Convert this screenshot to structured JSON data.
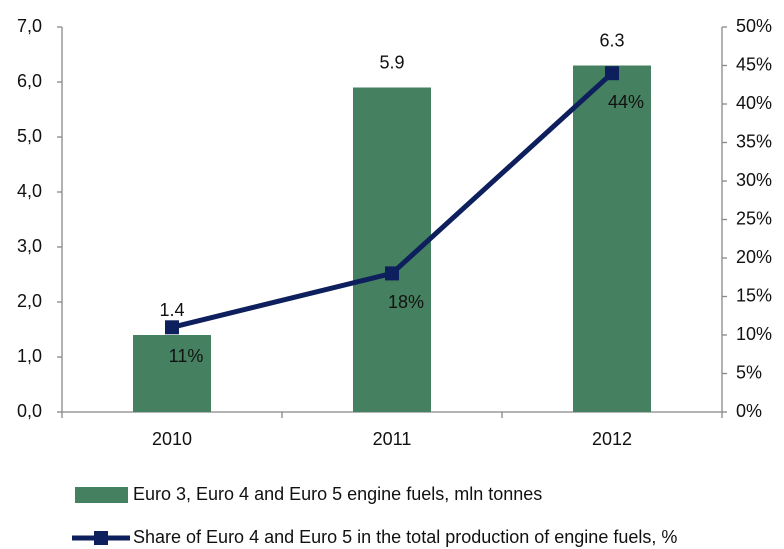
{
  "chart_data": {
    "type": "bar",
    "categories": [
      "2010",
      "2011",
      "2012"
    ],
    "series": [
      {
        "name": "Euro 3, Euro 4 and Euro 5 engine fuels, mln tonnes",
        "type": "bar",
        "color": "#458060",
        "values": [
          1.4,
          5.9,
          6.3
        ]
      },
      {
        "name": "Share of Euro 4 and Euro 5 in the total production of engine fuels, %",
        "type": "line",
        "axis": "y2",
        "color": "#0d1f5c",
        "values": [
          11,
          18,
          44
        ],
        "value_labels": [
          "11%",
          "18%",
          "44%"
        ]
      }
    ],
    "ylim": [
      0,
      7
    ],
    "yticks": [
      {
        "value": 0,
        "label": "0,0"
      },
      {
        "value": 1,
        "label": "1,0"
      },
      {
        "value": 2,
        "label": "2,0"
      },
      {
        "value": 3,
        "label": "3,0"
      },
      {
        "value": 4,
        "label": "4,0"
      },
      {
        "value": 5,
        "label": "5,0"
      },
      {
        "value": 6,
        "label": "6,0"
      },
      {
        "value": 7,
        "label": "7,0"
      }
    ],
    "y2lim": [
      0,
      50
    ],
    "y2ticks": [
      {
        "value": 0,
        "label": "0%"
      },
      {
        "value": 5,
        "label": "5%"
      },
      {
        "value": 10,
        "label": "10%"
      },
      {
        "value": 15,
        "label": "15%"
      },
      {
        "value": 20,
        "label": "20%"
      },
      {
        "value": 25,
        "label": "25%"
      },
      {
        "value": 30,
        "label": "30%"
      },
      {
        "value": 35,
        "label": "35%"
      },
      {
        "value": 40,
        "label": "40%"
      },
      {
        "value": 45,
        "label": "45%"
      },
      {
        "value": 50,
        "label": "50%"
      }
    ],
    "grid": false
  }
}
